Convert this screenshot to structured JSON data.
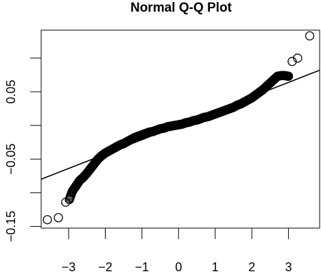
{
  "chart_data": {
    "type": "scatter",
    "title": "Normal Q-Q Plot",
    "xlabel": "",
    "ylabel": "",
    "xlim": [
      -3.75,
      3.85
    ],
    "ylim": [
      -0.1525,
      0.1415
    ],
    "x_ticks": [
      -3,
      -2,
      -1,
      0,
      1,
      2,
      3
    ],
    "x_tick_labels": [
      "−3",
      "−2",
      "−1",
      "0",
      "1",
      "2",
      "3"
    ],
    "y_ticks": [
      -0.15,
      -0.1,
      -0.05,
      0.0,
      0.05,
      0.1
    ],
    "y_tick_labels": [
      "−0.15",
      "",
      "−0.05",
      "",
      "0.05",
      ""
    ],
    "grid": false,
    "legend": "none",
    "marker": "open-circle",
    "reference_line": {
      "intercept": 0.0,
      "slope": 0.0213
    },
    "points": {
      "x": [
        -3.58,
        -3.28,
        -3.08,
        -2.98,
        -2.9,
        -2.8,
        -2.7,
        -2.6,
        -2.5,
        -2.4,
        -2.3,
        -2.2,
        -2.1,
        -2.0,
        -1.9,
        -1.8,
        -1.7,
        -1.6,
        -1.5,
        -1.4,
        -1.3,
        -1.2,
        -1.1,
        -1.0,
        -0.9,
        -0.8,
        -0.7,
        -0.6,
        -0.5,
        -0.4,
        -0.3,
        -0.2,
        -0.1,
        0.0,
        0.1,
        0.2,
        0.3,
        0.4,
        0.5,
        0.6,
        0.7,
        0.8,
        0.9,
        1.0,
        1.1,
        1.2,
        1.3,
        1.4,
        1.5,
        1.6,
        1.7,
        1.8,
        1.9,
        2.0,
        2.1,
        2.2,
        2.3,
        2.4,
        2.5,
        2.6,
        2.7,
        2.8,
        2.9,
        3.0,
        3.1,
        3.25,
        3.58
      ],
      "y": [
        -0.14,
        -0.137,
        -0.114,
        -0.11,
        -0.098,
        -0.09,
        -0.082,
        -0.077,
        -0.071,
        -0.064,
        -0.057,
        -0.05,
        -0.045,
        -0.041,
        -0.038,
        -0.035,
        -0.032,
        -0.029,
        -0.027,
        -0.024,
        -0.021,
        -0.018,
        -0.016,
        -0.014,
        -0.012,
        -0.01,
        -0.009,
        -0.007,
        -0.005,
        -0.004,
        -0.002,
        -0.001,
        0.0,
        0.001,
        0.002,
        0.004,
        0.005,
        0.007,
        0.008,
        0.01,
        0.012,
        0.013,
        0.015,
        0.017,
        0.019,
        0.021,
        0.023,
        0.025,
        0.027,
        0.03,
        0.032,
        0.035,
        0.038,
        0.041,
        0.045,
        0.049,
        0.053,
        0.058,
        0.063,
        0.068,
        0.073,
        0.074,
        0.074,
        0.073,
        0.095,
        0.1,
        0.133
      ]
    }
  }
}
